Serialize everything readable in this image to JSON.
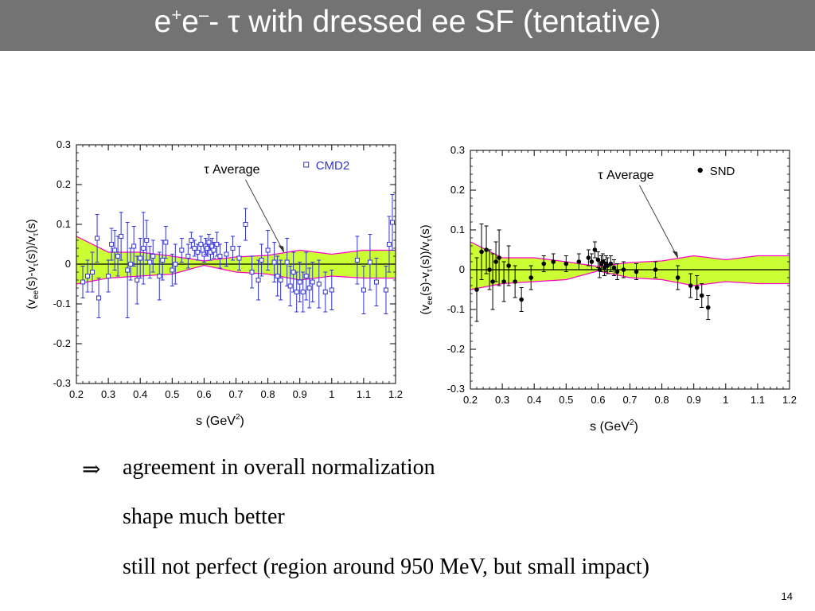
{
  "slide": {
    "title_prefix": "e",
    "title_sup1": "+",
    "title_mid": "e",
    "title_sup2": "–",
    "title_suffix": "-  τ with dressed ee SF (tentative)",
    "page_number": "14"
  },
  "bullets": {
    "arrow_symbol": "⇒",
    "line1": "agreement in overall normalization",
    "line2": "shape much better",
    "line3": "still not perfect (region around 950 MeV, but small impact)"
  },
  "colors": {
    "band_fill": "#ccff33",
    "band_edge": "#ff00cc",
    "points_cmd2": "#3333cc",
    "points_snd": "#000000",
    "title_bar": "#737373"
  },
  "chart_data": [
    {
      "type": "scatter",
      "legend_label": "CMD2",
      "legend_placement": "top-right",
      "marker": "open-square",
      "annotation": "τ Average",
      "ylabel": "(v_ee(s)-v_τ(s))/v_τ(s)",
      "xlabel": "s   (GeV²)",
      "xlim": [
        0.2,
        1.2
      ],
      "ylim": [
        -0.3,
        0.3
      ],
      "x_ticks": [
        "0.2",
        "0.3",
        "0.4",
        "0.5",
        "0.6",
        "0.7",
        "0.8",
        "0.9",
        "1",
        "1.1",
        "1.2"
      ],
      "y_ticks": [
        "0.3",
        "0.2",
        "0.1",
        "0",
        "-0.1",
        "-0.2",
        "-0.3"
      ],
      "grid": false,
      "band": {
        "x": [
          0.2,
          0.3,
          0.4,
          0.5,
          0.6,
          0.7,
          0.8,
          0.9,
          1.0,
          1.1,
          1.2
        ],
        "upper": [
          0.07,
          0.03,
          0.03,
          0.02,
          0.008,
          0.018,
          0.022,
          0.035,
          0.025,
          0.035,
          0.035
        ],
        "lower": [
          -0.05,
          -0.035,
          -0.03,
          -0.025,
          -0.003,
          -0.02,
          -0.025,
          -0.04,
          -0.03,
          -0.035,
          -0.035
        ]
      },
      "points": [
        {
          "x": 0.22,
          "y": -0.045,
          "err": 0.04
        },
        {
          "x": 0.235,
          "y": -0.03,
          "err": 0.04
        },
        {
          "x": 0.25,
          "y": -0.02,
          "err": 0.05
        },
        {
          "x": 0.265,
          "y": 0.065,
          "err": 0.06
        },
        {
          "x": 0.27,
          "y": -0.085,
          "err": 0.05
        },
        {
          "x": 0.3,
          "y": -0.03,
          "err": 0.04
        },
        {
          "x": 0.31,
          "y": 0.05,
          "err": 0.04
        },
        {
          "x": 0.32,
          "y": 0.035,
          "err": 0.05
        },
        {
          "x": 0.33,
          "y": 0.02,
          "err": 0.05
        },
        {
          "x": 0.34,
          "y": 0.07,
          "err": 0.06
        },
        {
          "x": 0.36,
          "y": -0.015,
          "err": 0.12
        },
        {
          "x": 0.37,
          "y": 0.0,
          "err": 0.04
        },
        {
          "x": 0.38,
          "y": 0.045,
          "err": 0.05
        },
        {
          "x": 0.39,
          "y": -0.04,
          "err": 0.06
        },
        {
          "x": 0.4,
          "y": 0.015,
          "err": 0.05
        },
        {
          "x": 0.41,
          "y": 0.04,
          "err": 0.09
        },
        {
          "x": 0.42,
          "y": 0.06,
          "err": 0.05
        },
        {
          "x": 0.43,
          "y": 0.005,
          "err": 0.04
        },
        {
          "x": 0.44,
          "y": 0.02,
          "err": 0.04
        },
        {
          "x": 0.46,
          "y": -0.03,
          "err": 0.06
        },
        {
          "x": 0.47,
          "y": 0.01,
          "err": 0.05
        },
        {
          "x": 0.48,
          "y": 0.055,
          "err": 0.04
        },
        {
          "x": 0.5,
          "y": -0.015,
          "err": 0.04
        },
        {
          "x": 0.51,
          "y": 0.0,
          "err": 0.05
        },
        {
          "x": 0.53,
          "y": 0.035,
          "err": 0.03
        },
        {
          "x": 0.55,
          "y": 0.02,
          "err": 0.03
        },
        {
          "x": 0.56,
          "y": 0.06,
          "err": 0.02
        },
        {
          "x": 0.57,
          "y": 0.04,
          "err": 0.02
        },
        {
          "x": 0.58,
          "y": 0.03,
          "err": 0.02
        },
        {
          "x": 0.59,
          "y": 0.05,
          "err": 0.02
        },
        {
          "x": 0.6,
          "y": 0.025,
          "err": 0.02
        },
        {
          "x": 0.605,
          "y": 0.045,
          "err": 0.02
        },
        {
          "x": 0.61,
          "y": 0.04,
          "err": 0.02
        },
        {
          "x": 0.615,
          "y": 0.055,
          "err": 0.02
        },
        {
          "x": 0.62,
          "y": 0.03,
          "err": 0.02
        },
        {
          "x": 0.625,
          "y": 0.045,
          "err": 0.02
        },
        {
          "x": 0.63,
          "y": 0.035,
          "err": 0.02
        },
        {
          "x": 0.64,
          "y": 0.05,
          "err": 0.03
        },
        {
          "x": 0.65,
          "y": 0.02,
          "err": 0.03
        },
        {
          "x": 0.67,
          "y": 0.025,
          "err": 0.03
        },
        {
          "x": 0.69,
          "y": 0.04,
          "err": 0.03
        },
        {
          "x": 0.71,
          "y": 0.015,
          "err": 0.03
        },
        {
          "x": 0.73,
          "y": 0.1,
          "err": 0.04
        },
        {
          "x": 0.75,
          "y": -0.02,
          "err": 0.04
        },
        {
          "x": 0.77,
          "y": -0.04,
          "err": 0.05
        },
        {
          "x": 0.78,
          "y": 0.01,
          "err": 0.04
        },
        {
          "x": 0.8,
          "y": 0.035,
          "err": 0.05
        },
        {
          "x": 0.82,
          "y": 0.005,
          "err": 0.05
        },
        {
          "x": 0.83,
          "y": -0.03,
          "err": 0.05
        },
        {
          "x": 0.84,
          "y": -0.04,
          "err": 0.05
        },
        {
          "x": 0.86,
          "y": 0.005,
          "err": 0.06
        },
        {
          "x": 0.87,
          "y": -0.055,
          "err": 0.05
        },
        {
          "x": 0.88,
          "y": -0.02,
          "err": 0.05
        },
        {
          "x": 0.89,
          "y": -0.07,
          "err": 0.05
        },
        {
          "x": 0.9,
          "y": -0.045,
          "err": 0.05
        },
        {
          "x": 0.91,
          "y": -0.07,
          "err": 0.05
        },
        {
          "x": 0.92,
          "y": -0.03,
          "err": 0.06
        },
        {
          "x": 0.93,
          "y": -0.06,
          "err": 0.05
        },
        {
          "x": 0.94,
          "y": -0.045,
          "err": 0.05
        },
        {
          "x": 0.96,
          "y": -0.05,
          "err": 0.06
        },
        {
          "x": 0.98,
          "y": -0.07,
          "err": 0.05
        },
        {
          "x": 1.0,
          "y": -0.065,
          "err": 0.05
        },
        {
          "x": 1.08,
          "y": 0.01,
          "err": 0.06
        },
        {
          "x": 1.1,
          "y": -0.065,
          "err": 0.06
        },
        {
          "x": 1.12,
          "y": 0.005,
          "err": 0.07
        },
        {
          "x": 1.14,
          "y": -0.045,
          "err": 0.06
        },
        {
          "x": 1.17,
          "y": -0.065,
          "err": 0.06
        },
        {
          "x": 1.18,
          "y": 0.05,
          "err": 0.07
        },
        {
          "x": 1.19,
          "y": 0.105,
          "err": 0.07
        }
      ]
    },
    {
      "type": "scatter",
      "legend_label": "SND",
      "legend_placement": "top-right",
      "marker": "filled-circle",
      "annotation": "τ Average",
      "ylabel": "(v_ee(s)-v_τ(s))/v_τ(s)",
      "xlabel": "s   (GeV²)",
      "xlim": [
        0.2,
        1.2
      ],
      "ylim": [
        -0.3,
        0.3
      ],
      "x_ticks": [
        "0.2",
        "0.3",
        "0.4",
        "0.5",
        "0.6",
        "0.7",
        "0.8",
        "0.9",
        "1",
        "1.1",
        "1.2"
      ],
      "y_ticks": [
        "0.3",
        "0.2",
        "0.1",
        "0",
        "-0.1",
        "-0.2",
        "-0.3"
      ],
      "grid": false,
      "band": {
        "x": [
          0.2,
          0.3,
          0.4,
          0.5,
          0.6,
          0.7,
          0.8,
          0.9,
          1.0,
          1.1,
          1.2
        ],
        "upper": [
          0.07,
          0.03,
          0.03,
          0.02,
          0.008,
          0.018,
          0.022,
          0.035,
          0.025,
          0.035,
          0.035
        ],
        "lower": [
          -0.05,
          -0.035,
          -0.03,
          -0.025,
          -0.003,
          -0.02,
          -0.025,
          -0.04,
          -0.03,
          -0.035,
          -0.035
        ]
      },
      "points": [
        {
          "x": 0.22,
          "y": -0.05,
          "err": 0.08
        },
        {
          "x": 0.235,
          "y": 0.045,
          "err": 0.07
        },
        {
          "x": 0.25,
          "y": 0.05,
          "err": 0.06
        },
        {
          "x": 0.26,
          "y": 0.0,
          "err": 0.05
        },
        {
          "x": 0.27,
          "y": -0.03,
          "err": 0.07
        },
        {
          "x": 0.28,
          "y": 0.02,
          "err": 0.05
        },
        {
          "x": 0.29,
          "y": 0.03,
          "err": 0.07
        },
        {
          "x": 0.305,
          "y": -0.03,
          "err": 0.05
        },
        {
          "x": 0.32,
          "y": 0.01,
          "err": 0.05
        },
        {
          "x": 0.34,
          "y": -0.03,
          "err": 0.04
        },
        {
          "x": 0.36,
          "y": -0.075,
          "err": 0.03
        },
        {
          "x": 0.39,
          "y": -0.02,
          "err": 0.03
        },
        {
          "x": 0.43,
          "y": 0.015,
          "err": 0.02
        },
        {
          "x": 0.46,
          "y": 0.02,
          "err": 0.02
        },
        {
          "x": 0.5,
          "y": 0.015,
          "err": 0.02
        },
        {
          "x": 0.54,
          "y": 0.02,
          "err": 0.02
        },
        {
          "x": 0.57,
          "y": 0.03,
          "err": 0.02
        },
        {
          "x": 0.58,
          "y": 0.02,
          "err": 0.02
        },
        {
          "x": 0.59,
          "y": 0.05,
          "err": 0.02
        },
        {
          "x": 0.6,
          "y": 0.025,
          "err": 0.02
        },
        {
          "x": 0.605,
          "y": 0.0,
          "err": 0.02
        },
        {
          "x": 0.61,
          "y": 0.015,
          "err": 0.02
        },
        {
          "x": 0.615,
          "y": 0.02,
          "err": 0.02
        },
        {
          "x": 0.62,
          "y": 0.005,
          "err": 0.02
        },
        {
          "x": 0.625,
          "y": 0.015,
          "err": 0.02
        },
        {
          "x": 0.63,
          "y": 0.01,
          "err": 0.02
        },
        {
          "x": 0.64,
          "y": 0.015,
          "err": 0.02
        },
        {
          "x": 0.65,
          "y": 0.005,
          "err": 0.02
        },
        {
          "x": 0.66,
          "y": -0.005,
          "err": 0.02
        },
        {
          "x": 0.68,
          "y": 0.0,
          "err": 0.02
        },
        {
          "x": 0.72,
          "y": -0.005,
          "err": 0.02
        },
        {
          "x": 0.78,
          "y": 0.0,
          "err": 0.02
        },
        {
          "x": 0.85,
          "y": -0.02,
          "err": 0.03
        },
        {
          "x": 0.89,
          "y": -0.04,
          "err": 0.03
        },
        {
          "x": 0.91,
          "y": -0.045,
          "err": 0.03
        },
        {
          "x": 0.925,
          "y": -0.065,
          "err": 0.03
        },
        {
          "x": 0.945,
          "y": -0.095,
          "err": 0.03
        }
      ]
    }
  ]
}
